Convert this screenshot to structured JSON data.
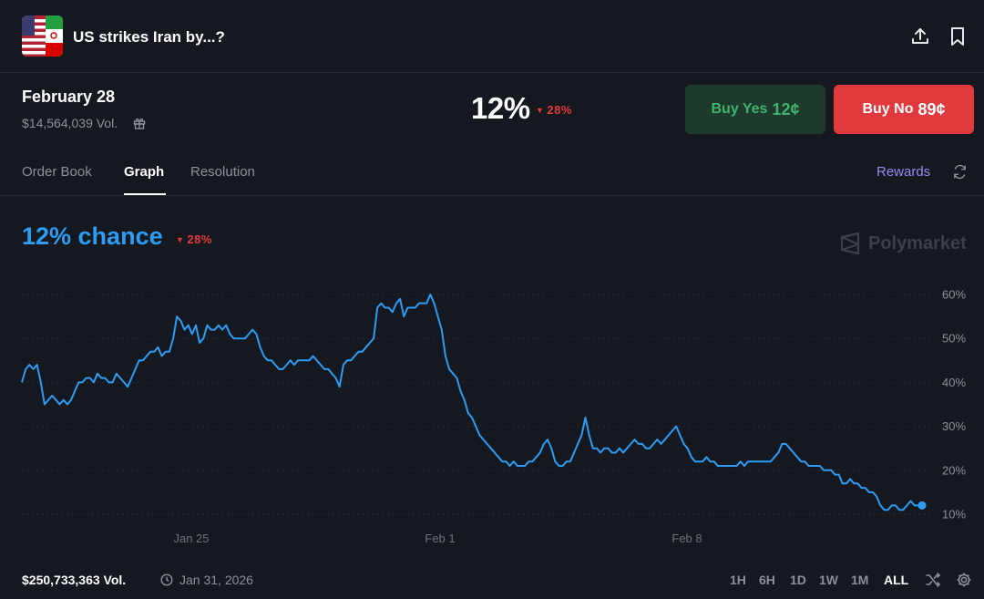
{
  "header": {
    "title": "US strikes Iran by...?",
    "flag_icon": "us-iran-flag-icon",
    "share_icon": "share-icon",
    "bookmark_icon": "bookmark-icon"
  },
  "outcome": {
    "date": "February 28",
    "volume": "$14,564,039 Vol.",
    "gift_icon": "gift-icon",
    "price": "12%",
    "change": "28%"
  },
  "actions": {
    "buy_yes_label": "Buy Yes",
    "buy_yes_price": "12¢",
    "buy_no_label": "Buy No",
    "buy_no_price": "89¢"
  },
  "tabs": [
    {
      "label": "Order Book",
      "active": false
    },
    {
      "label": "Graph",
      "active": true
    },
    {
      "label": "Resolution",
      "active": false
    }
  ],
  "rewards": {
    "label": "Rewards",
    "icon": "refresh-icon"
  },
  "summary": {
    "chance": "12% chance",
    "change": "28%"
  },
  "brand": {
    "name": "Polymarket"
  },
  "footer": {
    "volume": "$250,733,363 Vol.",
    "date": "Jan 31, 2026",
    "ranges": [
      "1H",
      "6H",
      "1D",
      "1W",
      "1M",
      "ALL"
    ],
    "active_range": "ALL"
  },
  "colors": {
    "line": "#2d9cf5",
    "down": "#e23b3b",
    "yes": "#3fb56c",
    "no": "#e0393e",
    "background": "#15191f"
  },
  "chart_data": {
    "type": "line",
    "grid": true,
    "legend": "none",
    "y_axis_side": "right",
    "yticks": [
      "60%",
      "50%",
      "40%",
      "30%",
      "20%",
      "10%"
    ],
    "ytick_values": [
      60,
      50,
      40,
      30,
      20,
      10
    ],
    "xticks": [
      "Jan 25",
      "Feb 1",
      "Feb 8"
    ],
    "ylim": [
      9,
      61
    ],
    "series": [
      {
        "values": [
          40,
          43,
          44,
          43,
          44,
          40,
          35,
          36,
          37,
          36,
          35,
          36,
          35,
          36,
          38,
          40,
          40,
          41,
          41,
          40,
          42,
          41,
          41,
          40,
          40,
          42,
          41,
          40,
          39,
          41,
          43,
          45,
          45,
          46,
          47,
          47,
          48,
          46,
          47,
          47,
          50,
          55,
          54,
          52,
          53,
          51,
          53,
          49,
          50,
          53,
          52,
          52,
          53,
          52,
          53,
          51,
          50,
          50,
          50,
          50,
          51,
          52,
          51,
          48,
          46,
          45,
          45,
          44,
          43,
          43,
          44,
          45,
          44,
          45,
          45,
          45,
          45,
          46,
          45,
          44,
          43,
          43,
          42,
          41,
          39,
          44,
          45,
          45,
          46,
          47,
          47,
          48,
          49,
          50,
          57,
          58,
          57,
          57,
          56,
          58,
          59,
          55,
          57,
          57,
          57,
          58,
          58,
          58,
          60,
          58,
          55,
          52,
          46,
          43,
          42,
          41,
          38,
          36,
          33,
          32,
          30,
          28,
          27,
          26,
          25,
          24,
          23,
          22,
          22,
          21,
          22,
          21,
          21,
          21,
          22,
          22,
          23,
          24,
          26,
          27,
          25,
          22,
          21,
          21,
          22,
          22,
          24,
          26,
          28,
          32,
          28,
          25,
          25,
          24,
          25,
          25,
          24,
          24,
          25,
          24,
          25,
          26,
          27,
          26,
          26,
          25,
          25,
          26,
          27,
          26,
          27,
          28,
          29,
          30,
          28,
          26,
          25,
          23,
          22,
          22,
          22,
          23,
          22,
          22,
          21,
          21,
          21,
          21,
          21,
          21,
          22,
          21,
          22,
          22,
          22,
          22,
          22,
          22,
          22,
          23,
          24,
          26,
          26,
          25,
          24,
          23,
          22,
          22,
          21,
          21,
          21,
          21,
          20,
          20,
          20,
          19,
          19,
          17,
          17,
          18,
          17,
          17,
          16,
          16,
          15,
          15,
          14,
          12,
          11,
          11,
          12,
          12,
          11,
          11,
          12,
          13,
          12,
          12,
          12
        ]
      }
    ]
  }
}
